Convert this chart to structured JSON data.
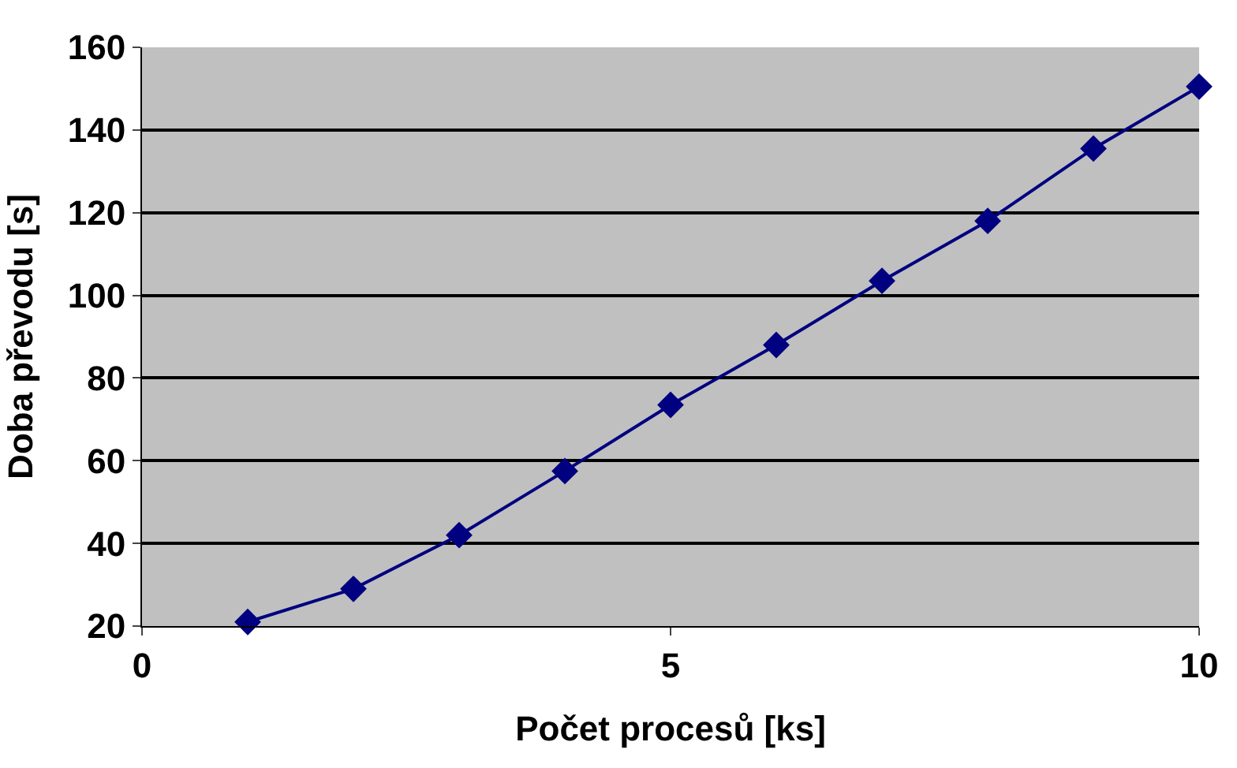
{
  "chart_data": {
    "type": "line",
    "xlabel": "Počet procesů [ks]",
    "ylabel": "Doba převodu [s]",
    "x": [
      1,
      2,
      3,
      4,
      5,
      6,
      7,
      8,
      9,
      10
    ],
    "series": [
      {
        "color": "#000080",
        "values": [
          21,
          29,
          42,
          57.5,
          73.5,
          88,
          103.5,
          118,
          135.5,
          150.5
        ]
      }
    ],
    "xlim": [
      0,
      10
    ],
    "xticks": [
      0,
      5,
      10
    ],
    "ylim": [
      20,
      160
    ],
    "yticks": [
      20,
      40,
      60,
      80,
      100,
      120,
      140,
      160
    ],
    "grid": "y",
    "marker": "diamond",
    "line_style": "solid",
    "legend": false
  }
}
